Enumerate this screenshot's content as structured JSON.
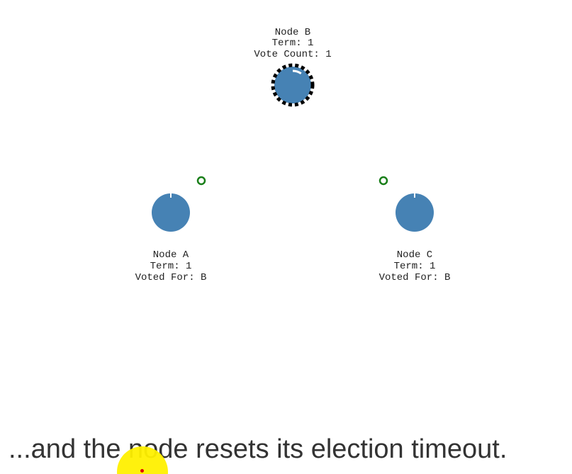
{
  "colors": {
    "node_fill": "#4682b4",
    "candidate_ring": "#000000",
    "timer_arc": "#ffffff",
    "message_ring": "#1a7f1a",
    "text": "#222222",
    "caption": "#333333",
    "cursor_highlight": "#fff000",
    "cursor_dot": "#e00000"
  },
  "nodes": {
    "b": {
      "name": "Node B",
      "term": "Term: 1",
      "status": "Vote Count: 1",
      "role": "candidate",
      "timeout_remaining": 0.9
    },
    "a": {
      "name": "Node A",
      "term": "Term: 1",
      "status": "Voted For: B",
      "role": "follower",
      "timeout_remaining": 1.0
    },
    "c": {
      "name": "Node C",
      "term": "Term: 1",
      "status": "Voted For: B",
      "role": "follower",
      "timeout_remaining": 1.0
    }
  },
  "messages": [
    {
      "from": "a",
      "to": "b",
      "kind": "vote-response"
    },
    {
      "from": "c",
      "to": "b",
      "kind": "vote-response"
    }
  ],
  "caption": "...and the node resets its election timeout."
}
